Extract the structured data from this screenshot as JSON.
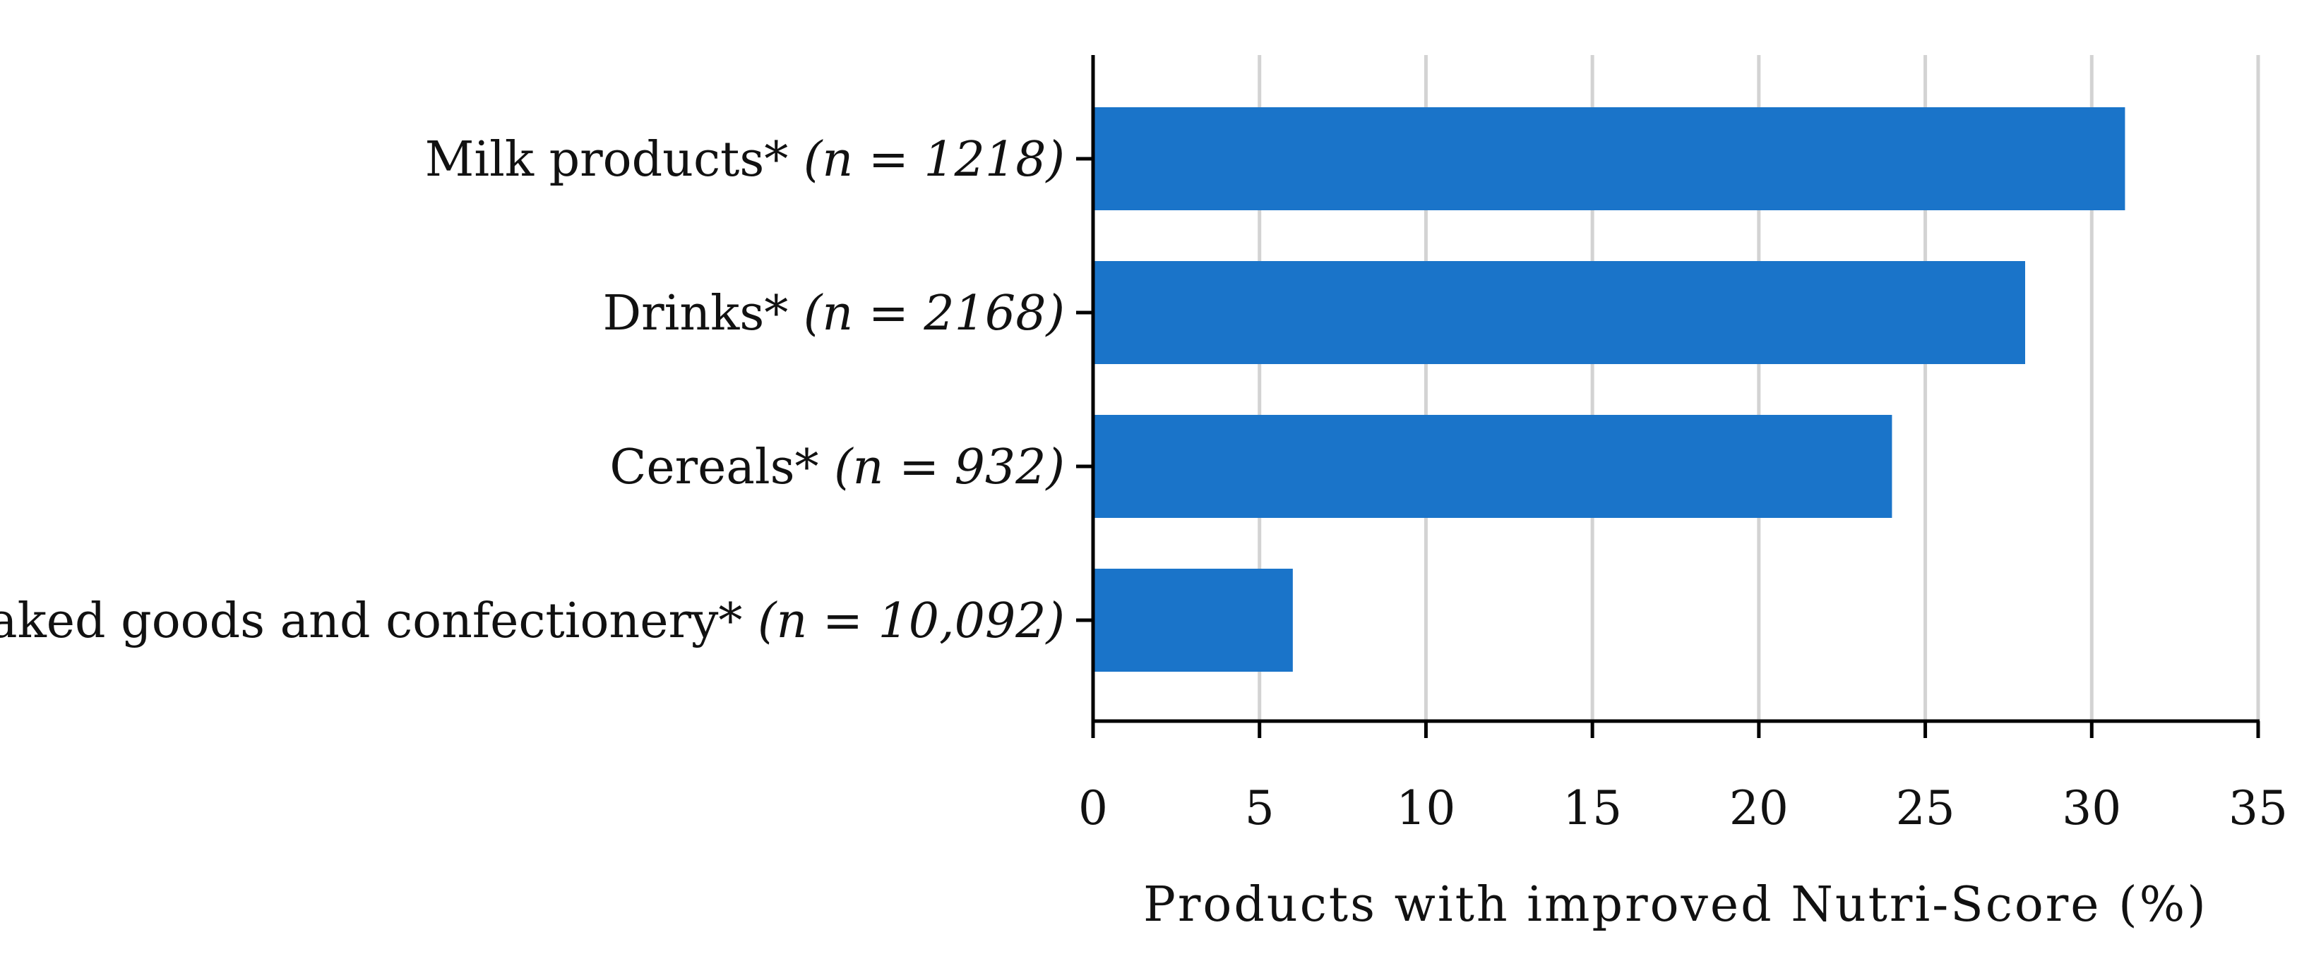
{
  "chart_data": {
    "type": "bar",
    "orientation": "horizontal",
    "title": "",
    "xlabel": "Products with improved Nutri-Score (%)",
    "ylabel": "",
    "categories": [
      {
        "name": "Milk products*",
        "n_label": "(n = 1218)"
      },
      {
        "name": "Drinks*",
        "n_label": "(n = 2168)"
      },
      {
        "name": "Cereals*",
        "n_label": "(n = 932)"
      },
      {
        "name": "Baked goods and confectionery*",
        "n_label": "(n = 10,092)"
      }
    ],
    "values": [
      31,
      28,
      24,
      6
    ],
    "xlim": [
      0,
      35
    ],
    "xticks": [
      "0",
      "5",
      "10",
      "15",
      "20",
      "25",
      "30",
      "35"
    ],
    "grid": "vertical",
    "legend": "none",
    "colors": {
      "bar": "#1a74c9",
      "grid": "#d3d3d3",
      "axis": "#000000"
    }
  }
}
